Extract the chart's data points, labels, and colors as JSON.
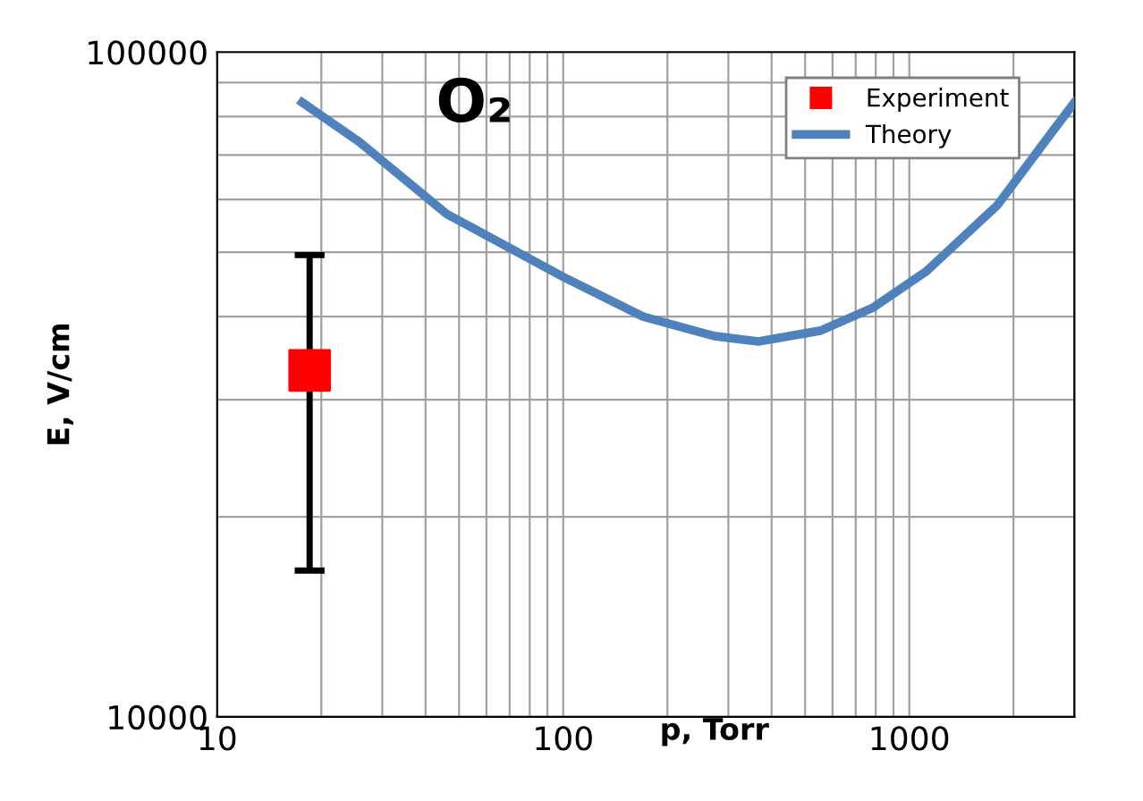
{
  "chart_data": {
    "type": "line",
    "title": "O₂",
    "xlabel": "p, Torr",
    "ylabel": "E, V/cm",
    "log": "xy",
    "xlim": [
      10,
      3000
    ],
    "ylim": [
      10000,
      100000
    ],
    "xticks": [
      10,
      100,
      1000
    ],
    "yticks": [
      10000,
      100000
    ],
    "grid": true,
    "legend": "top right",
    "series": [
      {
        "name": "Experiment",
        "type": "scatter",
        "color": "#ff0000",
        "marker": "square",
        "x": [
          18.5
        ],
        "values": [
          33200
        ],
        "errors": [
          [
            16600,
            49500
          ]
        ]
      },
      {
        "name": "Theory",
        "color": "#4f81bd",
        "marker": "none",
        "line_style": "solid",
        "x": [
          17.6,
          25.7,
          46,
          100,
          170,
          273,
          366,
          554,
          788,
          1120,
          1800,
          2570,
          3000
        ],
        "values": [
          84000,
          73300,
          57100,
          45900,
          40000,
          37400,
          36700,
          38100,
          41300,
          46800,
          58900,
          75500,
          84000
        ]
      }
    ]
  }
}
